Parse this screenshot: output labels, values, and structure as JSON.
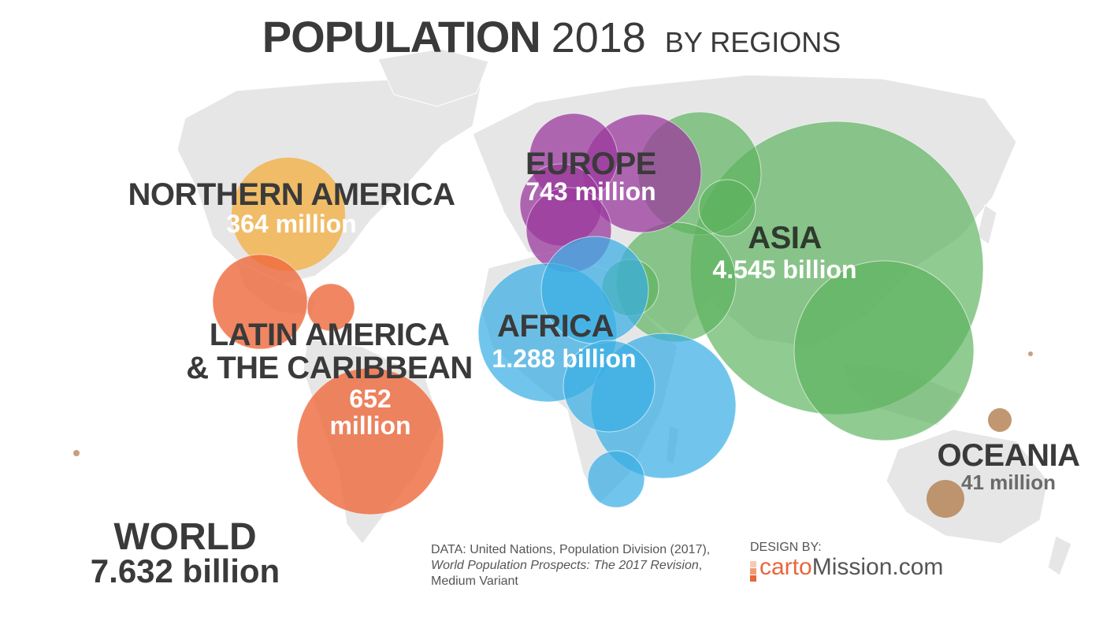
{
  "title": {
    "main": "POPULATION",
    "year": "2018",
    "sub": "BY REGIONS"
  },
  "colors": {
    "asia": "#5cb25d",
    "africa": "#3aaee5",
    "europe": "#9b3a9e",
    "northern_america": "#f2b450",
    "latin_america": "#ee6b3f",
    "oceania": "#b7895c",
    "land": "#e6e6e6",
    "text": "#3a3a3a"
  },
  "regions": [
    {
      "id": "northern_america",
      "name": "NORTHERN AMERICA",
      "value": "364 million",
      "population_millions": 364
    },
    {
      "id": "latin_america",
      "name_line1": "LATIN AMERICA",
      "name_line2": "& THE CARIBBEAN",
      "value_line1": "652",
      "value_line2": "million",
      "population_millions": 652
    },
    {
      "id": "europe",
      "name": "EUROPE",
      "value": "743 million",
      "population_millions": 743
    },
    {
      "id": "africa",
      "name": "AFRICA",
      "value": "1.288 billion",
      "population_millions": 1288
    },
    {
      "id": "asia",
      "name": "ASIA",
      "value": "4.545 billion",
      "population_millions": 4545
    },
    {
      "id": "oceania",
      "name": "OCEANIA",
      "value": "41 million",
      "population_millions": 41
    }
  ],
  "world": {
    "name": "WORLD",
    "value": "7.632 billion"
  },
  "source": {
    "prefix": "DATA: United Nations, Population Division (2017),",
    "italic": "World Population Prospects: The 2017 Revision",
    "suffix": ", Medium Variant"
  },
  "credit": {
    "label": "DESIGN BY:",
    "brand": "carto",
    "rest": "Mission.com"
  }
}
